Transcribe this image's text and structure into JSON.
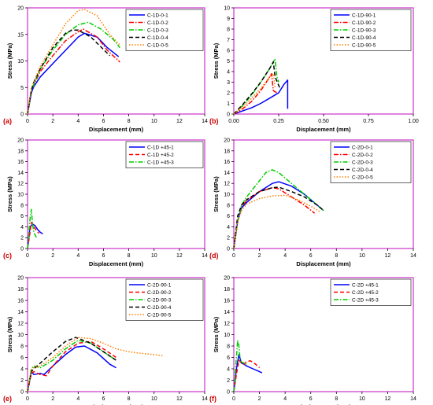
{
  "chart_data": [
    {
      "panel_label": "(a)",
      "type": "line",
      "xlabel": "Displacement (mm)",
      "ylabel": "Stress (MPa)",
      "xlim": [
        0,
        14
      ],
      "ylim": [
        0,
        20
      ],
      "xticks": [
        0,
        2,
        4,
        6,
        8,
        10,
        12,
        14
      ],
      "yticks": [
        0,
        5,
        10,
        15,
        20
      ],
      "xtick_labels": [
        "0",
        "2",
        "4",
        "6",
        "8",
        "10",
        "12",
        "14"
      ],
      "ytick_labels": [
        "0",
        "5",
        "10",
        "15",
        "20"
      ],
      "legend_position": "top-right",
      "series": [
        {
          "name": "C-1D-0-1",
          "color": "#0000ff",
          "dash": "solid",
          "x": [
            0,
            0.3,
            0.5,
            1,
            2,
            3,
            4,
            4.5,
            5.5,
            6.3,
            7.2
          ],
          "y": [
            0,
            4,
            5.2,
            7,
            9.5,
            12,
            14.5,
            15.2,
            14.5,
            12.5,
            10.8
          ]
        },
        {
          "name": "C-1D-0-2",
          "color": "#ff0000",
          "dash": "dashdot",
          "x": [
            0,
            0.3,
            0.5,
            1,
            2,
            3,
            4,
            4.4,
            5.5,
            6.3,
            7.3
          ],
          "y": [
            0,
            4.5,
            5.5,
            8,
            11,
            13.8,
            15.5,
            16,
            14.5,
            12,
            9.8
          ]
        },
        {
          "name": "C-1D-0-3",
          "color": "#00cc00",
          "dash": "dashdot",
          "x": [
            0,
            0.3,
            0.5,
            1,
            2,
            3,
            4,
            4.8,
            5.8,
            6.8,
            7.3
          ],
          "y": [
            0,
            4.5,
            5.5,
            8.5,
            12,
            15,
            16.8,
            17.3,
            16,
            14,
            12.5
          ]
        },
        {
          "name": "C-1D-0-4",
          "color": "#000000",
          "dash": "dash",
          "x": [
            0,
            0.3,
            0.5,
            1,
            2,
            3,
            3.5,
            4,
            5,
            6.5
          ],
          "y": [
            0,
            4.5,
            6,
            8.5,
            12.5,
            15.2,
            15.8,
            15.8,
            14.5,
            11
          ]
        },
        {
          "name": "C-1D-0-5",
          "color": "#ff8000",
          "dash": "dot",
          "x": [
            0,
            0.3,
            0.5,
            1,
            2,
            3,
            4,
            4.5,
            5.5,
            6.5,
            7.3
          ],
          "y": [
            0,
            5,
            6,
            9,
            13,
            17,
            19.5,
            19.7,
            18.5,
            15,
            13
          ]
        }
      ]
    },
    {
      "panel_label": "(b)",
      "type": "line",
      "xlabel": "Displacement (mm)",
      "ylabel": "Stress (MPa)",
      "xlim": [
        0,
        1
      ],
      "ylim": [
        0,
        10
      ],
      "xticks": [
        0,
        0.25,
        0.5,
        0.75,
        1
      ],
      "yticks": [
        0,
        1,
        2,
        3,
        4,
        5,
        6,
        7,
        8,
        9,
        10
      ],
      "xtick_labels": [
        "0.00",
        "0.25",
        "0.50",
        "0.75",
        "1.00"
      ],
      "ytick_labels": [
        "0",
        "1",
        "2",
        "3",
        "4",
        "5",
        "6",
        "7",
        "8",
        "9",
        "10"
      ],
      "legend_position": "top-right",
      "series": [
        {
          "name": "C-1D-90-1",
          "color": "#0000ff",
          "dash": "solid",
          "x": [
            0,
            0.05,
            0.1,
            0.15,
            0.2,
            0.25,
            0.28,
            0.3,
            0.3
          ],
          "y": [
            0,
            0.3,
            0.6,
            1.0,
            1.5,
            2.0,
            2.8,
            3.2,
            0.5
          ]
        },
        {
          "name": "C-1D-90-2",
          "color": "#ff0000",
          "dash": "dashdot",
          "x": [
            0,
            0.05,
            0.1,
            0.15,
            0.2,
            0.21,
            0.22,
            0.24
          ],
          "y": [
            0,
            0.5,
            1.2,
            2.2,
            3.5,
            3.8,
            2.2,
            2.0
          ]
        },
        {
          "name": "C-1D-90-3",
          "color": "#00cc00",
          "dash": "dashdot",
          "x": [
            0,
            0.05,
            0.1,
            0.15,
            0.2,
            0.23,
            0.24,
            0.25
          ],
          "y": [
            0,
            0.8,
            1.8,
            3.0,
            4.3,
            5.2,
            3.5,
            3.0
          ]
        },
        {
          "name": "C-1D-90-4",
          "color": "#000000",
          "dash": "dash",
          "x": [
            0,
            0.05,
            0.1,
            0.15,
            0.2,
            0.22,
            0.23,
            0.26
          ],
          "y": [
            0,
            0.9,
            1.9,
            3.0,
            4.3,
            4.9,
            3.5,
            2.3
          ]
        },
        {
          "name": "C-1D-90-5",
          "color": "#ff8000",
          "dash": "dot",
          "x": [
            0,
            0.05,
            0.1,
            0.15,
            0.2,
            0.22,
            0.23
          ],
          "y": [
            0,
            0.7,
            1.5,
            2.4,
            3.5,
            3.8,
            2.5
          ]
        }
      ]
    },
    {
      "panel_label": "(c)",
      "type": "line",
      "xlabel": "Displacement (mm)",
      "ylabel": "Stress (MPa)",
      "xlim": [
        0,
        14
      ],
      "ylim": [
        0,
        20
      ],
      "xticks": [
        0,
        2,
        4,
        6,
        8,
        10,
        12,
        14
      ],
      "yticks": [
        0,
        2,
        4,
        6,
        8,
        10,
        12,
        14,
        16,
        18,
        20
      ],
      "xtick_labels": [
        "0",
        "2",
        "4",
        "6",
        "8",
        "10",
        "12",
        "14"
      ],
      "ytick_labels": [
        "0",
        "2",
        "4",
        "6",
        "8",
        "10",
        "12",
        "14",
        "16",
        "18",
        "20"
      ],
      "legend_position": "top-right",
      "series": [
        {
          "name": "C-1D +45-1",
          "color": "#0000ff",
          "dash": "solid",
          "x": [
            0,
            0.2,
            0.4,
            0.6,
            0.8,
            1.0,
            1.2
          ],
          "y": [
            0,
            4,
            4.5,
            4.2,
            3.5,
            3.0,
            2.7
          ]
        },
        {
          "name": "C-1D +45-2",
          "color": "#ff0000",
          "dash": "dash",
          "x": [
            0,
            0.2,
            0.3,
            0.5,
            0.7,
            0.9
          ],
          "y": [
            0,
            3,
            4.8,
            4.0,
            3.3,
            2.8
          ]
        },
        {
          "name": "C-1D +45-3",
          "color": "#00cc00",
          "dash": "dashdot",
          "x": [
            0,
            0.2,
            0.3,
            0.4,
            0.5,
            0.7
          ],
          "y": [
            0,
            5.5,
            7.2,
            4.5,
            3.0,
            2.0
          ]
        }
      ]
    },
    {
      "panel_label": "(d)",
      "type": "line",
      "xlabel": "Displacement (mm)",
      "ylabel": "Stress (MPa)",
      "xlim": [
        0,
        14
      ],
      "ylim": [
        0,
        20
      ],
      "xticks": [
        0,
        2,
        4,
        6,
        8,
        10,
        12,
        14
      ],
      "yticks": [
        0,
        2,
        4,
        6,
        8,
        10,
        12,
        14,
        16,
        18,
        20
      ],
      "xtick_labels": [
        "0",
        "2",
        "4",
        "6",
        "8",
        "10",
        "12",
        "14"
      ],
      "ytick_labels": [
        "0",
        "2",
        "4",
        "6",
        "8",
        "10",
        "12",
        "14",
        "16",
        "18",
        "20"
      ],
      "legend_position": "top-right",
      "series": [
        {
          "name": "C-2D-0-1",
          "color": "#0000ff",
          "dash": "solid",
          "x": [
            0,
            0.3,
            0.6,
            1,
            2,
            3,
            3.5,
            4.5,
            5.5,
            6.5,
            7
          ],
          "y": [
            0,
            5,
            7.5,
            8.5,
            10.5,
            12,
            12.3,
            11.5,
            10,
            8,
            7
          ]
        },
        {
          "name": "C-2D-0-2",
          "color": "#ff0000",
          "dash": "dashdot",
          "x": [
            0,
            0.3,
            0.6,
            1,
            2,
            3,
            3.5,
            4.5,
            5.5,
            6.3
          ],
          "y": [
            0,
            5,
            7.8,
            8.8,
            10.5,
            11.2,
            11,
            9.5,
            8,
            6.5
          ]
        },
        {
          "name": "C-2D-0-3",
          "color": "#00cc00",
          "dash": "dashdot",
          "x": [
            0,
            0.3,
            0.6,
            1,
            2,
            2.5,
            3,
            3.5,
            4,
            5,
            6,
            7
          ],
          "y": [
            0,
            5,
            8,
            9.5,
            12.5,
            14,
            14.5,
            14,
            13,
            11,
            9,
            7
          ]
        },
        {
          "name": "C-2D-0-4",
          "color": "#000000",
          "dash": "dash",
          "x": [
            0,
            0.3,
            0.6,
            1,
            2,
            3,
            3.5,
            4.5,
            5.5,
            6.5,
            7
          ],
          "y": [
            0,
            6,
            8,
            9,
            10.5,
            11.2,
            11.3,
            10.5,
            9.5,
            8,
            7
          ]
        },
        {
          "name": "C-2D-0-5",
          "color": "#ff8000",
          "dash": "dot",
          "x": [
            0,
            0.3,
            0.6,
            1,
            2,
            3,
            4,
            5,
            6,
            6.7
          ],
          "y": [
            0,
            5,
            7,
            8.2,
            9.2,
            9.7,
            9.8,
            9,
            7.8,
            6.8
          ]
        }
      ]
    },
    {
      "panel_label": "(e)",
      "type": "line",
      "xlabel": "Displacement (mm)",
      "ylabel": "Stress (MPa)",
      "xlim": [
        0,
        14
      ],
      "ylim": [
        0,
        20
      ],
      "xticks": [
        0,
        2,
        4,
        6,
        8,
        10,
        12,
        14
      ],
      "yticks": [
        0,
        2,
        4,
        6,
        8,
        10,
        12,
        14,
        16,
        18,
        20
      ],
      "xtick_labels": [
        "0",
        "2",
        "4",
        "6",
        "8",
        "10",
        "12",
        "14"
      ],
      "ytick_labels": [
        "0",
        "2",
        "4",
        "6",
        "8",
        "10",
        "12",
        "14",
        "16",
        "18",
        "20"
      ],
      "legend_position": "top-right",
      "series": [
        {
          "name": "C-2D-90-1",
          "color": "#0000ff",
          "dash": "solid",
          "x": [
            0,
            0.3,
            0.5,
            1,
            1.3,
            2,
            3,
            3.8,
            4.5,
            5.5,
            6.5,
            7
          ],
          "y": [
            0,
            3.5,
            3.0,
            3.2,
            3.0,
            4.5,
            6.5,
            7.8,
            8,
            6.8,
            4.8,
            4.2
          ]
        },
        {
          "name": "C-2D-90-2",
          "color": "#ff0000",
          "dash": "dash",
          "x": [
            0,
            0.3,
            0.5,
            1,
            1.5,
            2,
            3,
            4,
            5,
            6,
            7
          ],
          "y": [
            0,
            3.2,
            3.5,
            3.0,
            2.8,
            4.5,
            7,
            8.5,
            8.8,
            7.5,
            6
          ]
        },
        {
          "name": "C-2D-90-3",
          "color": "#00cc00",
          "dash": "dashdot",
          "x": [
            0,
            0.3,
            0.5,
            1,
            2,
            3,
            4,
            5,
            6,
            7
          ],
          "y": [
            0,
            4,
            4.5,
            4.2,
            5.5,
            7.5,
            9,
            8.5,
            7,
            5.5
          ]
        },
        {
          "name": "C-2D-90-4",
          "color": "#000000",
          "dash": "dash",
          "x": [
            0,
            0.3,
            0.5,
            1,
            2,
            3,
            3.8,
            5,
            6,
            7
          ],
          "y": [
            0,
            3.5,
            4,
            5,
            7,
            8.8,
            9.5,
            8.5,
            7,
            5.5
          ]
        },
        {
          "name": "C-2D-90-5",
          "color": "#ff8000",
          "dash": "dot",
          "x": [
            0,
            0.3,
            0.5,
            1,
            2,
            3,
            4,
            5,
            6,
            7,
            8,
            9,
            10,
            10.7
          ],
          "y": [
            0,
            3.8,
            4.2,
            4.5,
            6,
            8,
            9.5,
            9.3,
            8.5,
            7.5,
            7,
            6.7,
            6.5,
            6.3
          ]
        }
      ]
    },
    {
      "panel_label": "(f)",
      "type": "line",
      "xlabel": "Displacement (mm)",
      "ylabel": "Stress (MPa)",
      "xlim": [
        0,
        14
      ],
      "ylim": [
        0,
        20
      ],
      "xticks": [
        0,
        2,
        4,
        6,
        8,
        10,
        12,
        14
      ],
      "yticks": [
        0,
        2,
        4,
        6,
        8,
        10,
        12,
        14,
        16,
        18,
        20
      ],
      "xtick_labels": [
        "0",
        "2",
        "4",
        "6",
        "8",
        "10",
        "12",
        "14"
      ],
      "ytick_labels": [
        "0",
        "2",
        "4",
        "6",
        "8",
        "10",
        "12",
        "14",
        "16",
        "18",
        "20"
      ],
      "legend_position": "top-right",
      "series": [
        {
          "name": "C-2D +45-1",
          "color": "#0000ff",
          "dash": "solid",
          "x": [
            0,
            0.2,
            0.4,
            0.6,
            0.8,
            1.0,
            1.5,
            2.0,
            2.2
          ],
          "y": [
            0,
            4,
            6.5,
            5.0,
            4.8,
            4.5,
            4.0,
            3.5,
            3.3
          ]
        },
        {
          "name": "C-2D +45-2",
          "color": "#ff0000",
          "dash": "dash",
          "x": [
            0,
            0.2,
            0.4,
            0.6,
            0.8,
            1.0,
            1.3,
            1.6,
            2.0
          ],
          "y": [
            0,
            3,
            5.5,
            5,
            4.8,
            5.3,
            5.4,
            5.0,
            4.2
          ]
        },
        {
          "name": "C-2D +45-3",
          "color": "#00cc00",
          "dash": "dashdot",
          "x": [
            0,
            0.2,
            0.3,
            0.4,
            0.5,
            0.6,
            0.8,
            1.0
          ],
          "y": [
            0,
            6,
            9,
            8,
            5.5,
            5.2,
            5,
            4.8
          ]
        }
      ]
    }
  ]
}
